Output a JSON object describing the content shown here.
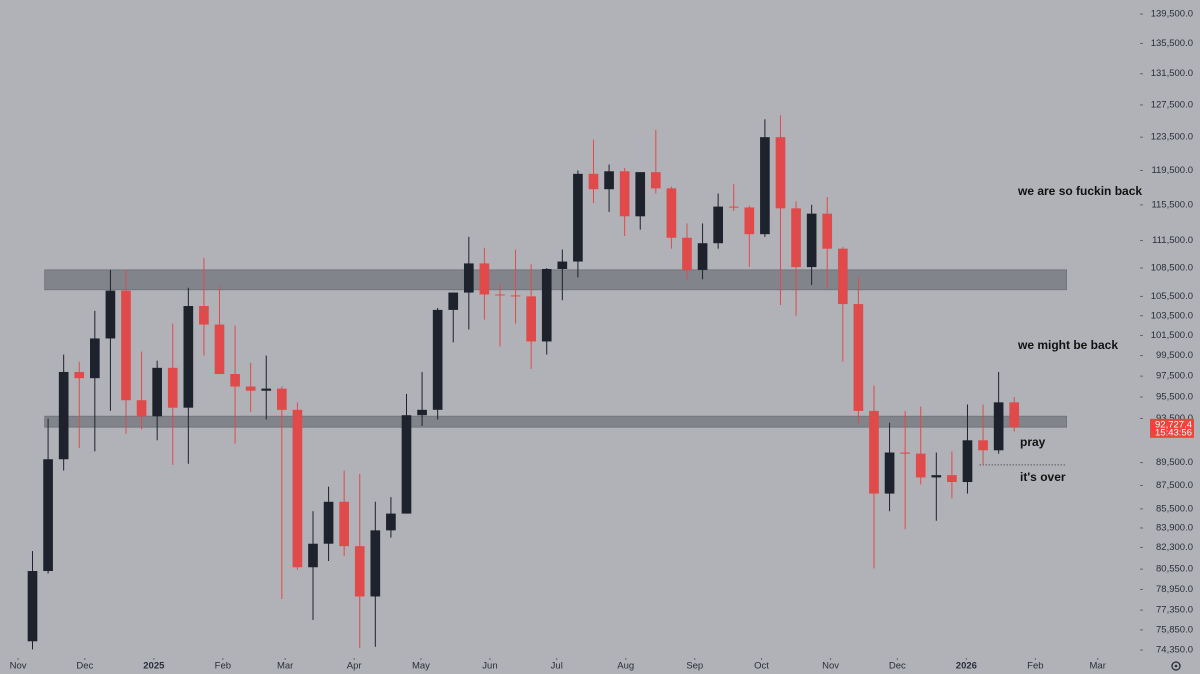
{
  "chart_data": {
    "type": "candlestick",
    "log_scale": true,
    "up_color": "#1e222d",
    "down_color": "#e04a4a",
    "x": [
      3,
      10,
      17,
      24,
      31,
      38,
      45,
      52,
      59,
      66,
      73,
      80,
      87,
      94,
      101,
      108,
      115,
      122,
      129,
      136,
      143,
      150,
      157,
      164,
      171,
      178,
      185,
      192,
      199,
      206,
      213,
      220,
      227,
      234,
      241,
      248,
      255,
      262,
      269,
      276,
      283,
      290,
      297,
      304,
      311,
      318,
      325,
      332,
      339,
      346,
      353,
      360,
      367,
      374,
      381,
      388,
      395,
      402,
      409,
      416,
      423,
      430,
      437,
      444
    ],
    "open": [
      75000,
      80400,
      89800,
      97900,
      97300,
      101200,
      106100,
      95200,
      93700,
      98300,
      94500,
      104500,
      102600,
      97700,
      96500,
      96100,
      96300,
      94300,
      80700,
      82600,
      86100,
      82400,
      78400,
      83700,
      85100,
      93800,
      94300,
      104100,
      105900,
      109000,
      105700,
      105600,
      105500,
      100900,
      108400,
      109200,
      119100,
      117300,
      119400,
      114200,
      119300,
      117400,
      111800,
      108300,
      111200,
      115300,
      115200,
      112200,
      123500,
      115100,
      108600,
      114500,
      110600,
      104700,
      94200,
      86800,
      90400,
      90300,
      88200,
      88400,
      87800,
      91500,
      90600,
      95000
    ],
    "high": [
      82000,
      93500,
      99600,
      98900,
      104000,
      108300,
      108300,
      99900,
      99000,
      102700,
      106400,
      109600,
      106500,
      102500,
      98800,
      99500,
      96500,
      95000,
      85300,
      87400,
      88800,
      88500,
      86100,
      86500,
      95800,
      97900,
      104300,
      105800,
      111900,
      110700,
      106800,
      110500,
      108900,
      108500,
      110500,
      119500,
      123200,
      120200,
      119800,
      119300,
      124400,
      117600,
      113400,
      113400,
      116800,
      117900,
      115400,
      125700,
      126200,
      115900,
      115500,
      116400,
      110800,
      107500,
      96600,
      93100,
      94200,
      94600,
      90400,
      90500,
      94800,
      94800,
      97900,
      95500
    ],
    "low": [
      74400,
      80200,
      88800,
      90800,
      90500,
      94200,
      92100,
      92500,
      91500,
      89300,
      89400,
      99500,
      97800,
      91200,
      94100,
      93400,
      78200,
      80500,
      76600,
      81200,
      81600,
      74500,
      74600,
      83100,
      85100,
      92800,
      93400,
      100800,
      102100,
      103100,
      100400,
      102700,
      98200,
      99600,
      105100,
      107500,
      115700,
      114700,
      112000,
      112700,
      116800,
      110600,
      107300,
      107300,
      110600,
      114800,
      108600,
      111900,
      104600,
      103500,
      106700,
      106300,
      98900,
      93000,
      80600,
      85300,
      83800,
      87600,
      84500,
      86400,
      86800,
      89300,
      90300,
      92300
    ],
    "close": [
      80400,
      89800,
      97900,
      97300,
      101200,
      106100,
      95200,
      93700,
      98300,
      94500,
      104500,
      102600,
      97700,
      96500,
      96100,
      96300,
      94300,
      80700,
      82600,
      86100,
      82400,
      78400,
      83700,
      85100,
      93800,
      94300,
      104100,
      105900,
      109000,
      105700,
      105600,
      105500,
      100900,
      108400,
      109200,
      119100,
      117300,
      119400,
      114200,
      119300,
      117400,
      111800,
      108300,
      111200,
      115300,
      115200,
      112200,
      123500,
      115100,
      108600,
      114500,
      110600,
      104700,
      94200,
      86800,
      90400,
      90300,
      88200,
      88400,
      87800,
      91500,
      90600,
      95000,
      92700
    ],
    "xlim": [
      -8.1,
      504
    ],
    "ylim": [
      73770,
      141450
    ],
    "xticks": [
      {
        "value": 0,
        "label": "Nov"
      },
      {
        "value": 30,
        "label": "Dec"
      },
      {
        "value": 61,
        "label": "2025"
      },
      {
        "value": 92,
        "label": "Feb"
      },
      {
        "value": 120,
        "label": "Mar"
      },
      {
        "value": 151,
        "label": "Apr"
      },
      {
        "value": 181,
        "label": "May"
      },
      {
        "value": 212,
        "label": "Jun"
      },
      {
        "value": 242,
        "label": "Jul"
      },
      {
        "value": 273,
        "label": "Aug"
      },
      {
        "value": 304,
        "label": "Sep"
      },
      {
        "value": 334,
        "label": "Oct"
      },
      {
        "value": 365,
        "label": "Nov"
      },
      {
        "value": 395,
        "label": "Dec"
      },
      {
        "value": 426,
        "label": "2026"
      },
      {
        "value": 457,
        "label": "Feb"
      },
      {
        "value": 485,
        "label": "Mar"
      }
    ],
    "yticks": [
      {
        "value": 139500,
        "label": "139,500.0"
      },
      {
        "value": 135500,
        "label": "135,500.0"
      },
      {
        "value": 131500,
        "label": "131,500.0"
      },
      {
        "value": 127500,
        "label": "127,500.0"
      },
      {
        "value": 123500,
        "label": "123,500.0"
      },
      {
        "value": 119500,
        "label": "119,500.0"
      },
      {
        "value": 115500,
        "label": "115,500.0"
      },
      {
        "value": 111500,
        "label": "111,500.0"
      },
      {
        "value": 108500,
        "label": "108,500.0"
      },
      {
        "value": 105500,
        "label": "105,500.0"
      },
      {
        "value": 103500,
        "label": "103,500.0"
      },
      {
        "value": 101500,
        "label": "101,500.0"
      },
      {
        "value": 99500,
        "label": "99,500.0"
      },
      {
        "value": 97500,
        "label": "97,500.0"
      },
      {
        "value": 95500,
        "label": "95,500.0"
      },
      {
        "value": 93500,
        "label": "93,500.0"
      },
      {
        "value": 89500,
        "label": "89,500.0"
      },
      {
        "value": 87500,
        "label": "87,500.0"
      },
      {
        "value": 85500,
        "label": "85,500.0"
      },
      {
        "value": 83900,
        "label": "83,900.0"
      },
      {
        "value": 82300,
        "label": "82,300.0"
      },
      {
        "value": 80550,
        "label": "80,550.0"
      },
      {
        "value": 78950,
        "label": "78,950.0"
      },
      {
        "value": 77350,
        "label": "77,350.0"
      },
      {
        "value": 75850,
        "label": "75,850.0"
      },
      {
        "value": 74350,
        "label": "74,350.0"
      }
    ],
    "zones": [
      {
        "ylim": [
          106200,
          108300
        ],
        "xlim": [
          12,
          471
        ]
      },
      {
        "ylim": [
          92700,
          93700
        ],
        "xlim": [
          12,
          471
        ]
      }
    ],
    "level": {
      "value": 89300,
      "xlim": [
        432,
        471
      ]
    },
    "last_price": {
      "value": 92727.4,
      "label": "92,727.4"
    },
    "countdown": "15:43:56",
    "annotations": [
      "we are so fuckin back",
      "we might be back",
      "pray",
      "it's over"
    ]
  }
}
